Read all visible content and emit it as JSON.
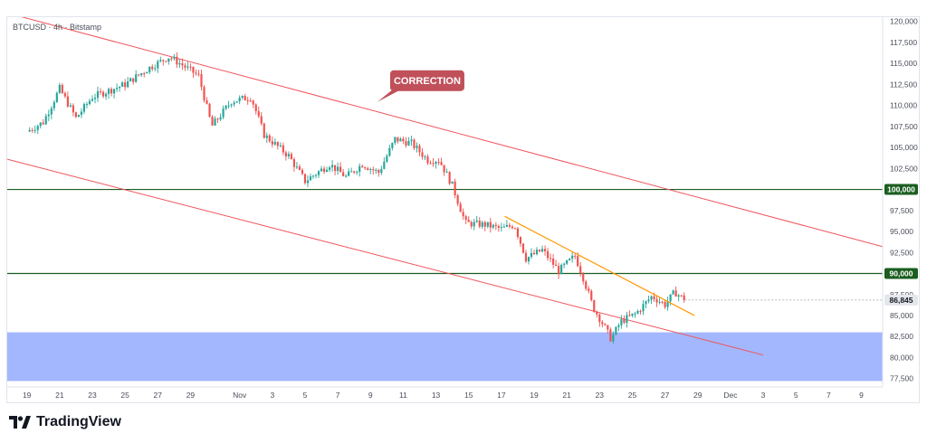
{
  "symbol_label": "BTCUSD · 4h · Bitstamp",
  "brand_text": "TradingView",
  "colors": {
    "up": "#26a69a",
    "down": "#ef5350",
    "channel": "#f0545a",
    "support": "#1b5e20",
    "trend": "#ff9800",
    "zone": "#a3b7ff",
    "annotation_bg": "#c0505a",
    "price_tag": "#e4e6eb"
  },
  "chart_data": {
    "type": "candlestick",
    "x_axis": {
      "labels": [
        {
          "text": "19",
          "day": 0
        },
        {
          "text": "21",
          "day": 2
        },
        {
          "text": "23",
          "day": 4
        },
        {
          "text": "25",
          "day": 6
        },
        {
          "text": "27",
          "day": 8
        },
        {
          "text": "29",
          "day": 10
        },
        {
          "text": "Nov",
          "day": 13
        },
        {
          "text": "3",
          "day": 15
        },
        {
          "text": "5",
          "day": 17
        },
        {
          "text": "7",
          "day": 19
        },
        {
          "text": "9",
          "day": 21
        },
        {
          "text": "11",
          "day": 23
        },
        {
          "text": "13",
          "day": 25
        },
        {
          "text": "15",
          "day": 27
        },
        {
          "text": "17",
          "day": 29
        },
        {
          "text": "19",
          "day": 31
        },
        {
          "text": "21",
          "day": 33
        },
        {
          "text": "23",
          "day": 35
        },
        {
          "text": "25",
          "day": 37
        },
        {
          "text": "27",
          "day": 39
        },
        {
          "text": "29",
          "day": 41
        },
        {
          "text": "Dec",
          "day": 43
        },
        {
          "text": "3",
          "day": 45
        },
        {
          "text": "5",
          "day": 47
        },
        {
          "text": "7",
          "day": 49
        },
        {
          "text": "9",
          "day": 51
        }
      ],
      "range_days": [
        -1.2,
        52.3
      ]
    },
    "y_axis": {
      "ticks": [
        77500,
        80000,
        82500,
        85000,
        87500,
        90000,
        92500,
        95000,
        97500,
        100000,
        102500,
        105000,
        107500,
        110000,
        112500,
        115000,
        117500,
        120000
      ],
      "range": [
        76500,
        120500
      ]
    },
    "last_price": {
      "label": "86,845",
      "value": 86845
    },
    "key_levels": [
      {
        "label": "100,000",
        "value": 100000
      },
      {
        "label": "90,000",
        "value": 90000
      }
    ],
    "demand_zone": {
      "from": 77200,
      "to": 83000
    },
    "channel_lines": [
      {
        "from": {
          "day": -1.2,
          "price": 121000
        },
        "to": {
          "day": 52.3,
          "price": 93200
        }
      },
      {
        "from": {
          "day": -1.2,
          "price": 103600
        },
        "to": {
          "day": 45.0,
          "price": 80300
        }
      }
    ],
    "trendline": {
      "from": {
        "day": 29.2,
        "price": 96800
      },
      "to": {
        "day": 40.8,
        "price": 85000
      }
    },
    "annotation": {
      "text": "CORRECTION",
      "day": 22.2,
      "price": 113000
    },
    "path": [
      [
        0,
        106900
      ],
      [
        1,
        108000
      ],
      [
        2,
        112000
      ],
      [
        3,
        108500
      ],
      [
        4,
        111000
      ],
      [
        6,
        112500
      ],
      [
        7.5,
        114500
      ],
      [
        8.7,
        115800
      ],
      [
        9.5,
        114800
      ],
      [
        10.5,
        113500
      ],
      [
        11.3,
        107500
      ],
      [
        12.5,
        110500
      ],
      [
        13.7,
        111000
      ],
      [
        14.5,
        106500
      ],
      [
        16,
        104000
      ],
      [
        17,
        101000
      ],
      [
        18.5,
        103000
      ],
      [
        19.5,
        101500
      ],
      [
        20.5,
        103000
      ],
      [
        21.5,
        102000
      ],
      [
        22.5,
        106000
      ],
      [
        23.5,
        105500
      ],
      [
        24.5,
        103500
      ],
      [
        25.2,
        103500
      ],
      [
        26,
        100500
      ],
      [
        26.8,
        96000
      ],
      [
        28,
        95800
      ],
      [
        29,
        95300
      ],
      [
        29.8,
        95800
      ],
      [
        30.5,
        91800
      ],
      [
        31.5,
        92800
      ],
      [
        32.5,
        90300
      ],
      [
        33.5,
        92100
      ],
      [
        34,
        89500
      ],
      [
        34.6,
        86000
      ],
      [
        35.2,
        84000
      ],
      [
        35.7,
        82200
      ],
      [
        36.3,
        84300
      ],
      [
        37.2,
        85200
      ],
      [
        38.2,
        87300
      ],
      [
        39,
        86300
      ],
      [
        39.6,
        87800
      ],
      [
        40.2,
        86845
      ]
    ]
  }
}
